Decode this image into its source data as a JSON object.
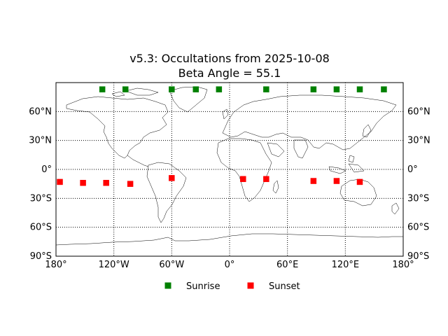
{
  "chart_data": {
    "type": "scatter",
    "title": "v5.3: Occultations from 2025-10-08",
    "subtitle": "Beta Angle = 55.1",
    "projection": "equirectangular",
    "xlim": [
      -180,
      180
    ],
    "ylim": [
      -90,
      90
    ],
    "x_ticks": [
      {
        "value": -180,
        "label": "180°"
      },
      {
        "value": -120,
        "label": "120°W"
      },
      {
        "value": -60,
        "label": "60°W"
      },
      {
        "value": 0,
        "label": "0°"
      },
      {
        "value": 60,
        "label": "60°E"
      },
      {
        "value": 120,
        "label": "120°E"
      },
      {
        "value": 180,
        "label": "180°"
      }
    ],
    "y_ticks": [
      {
        "value": 60,
        "label": "60°N"
      },
      {
        "value": 30,
        "label": "30°N"
      },
      {
        "value": 0,
        "label": "0°"
      },
      {
        "value": -30,
        "label": "30°S"
      },
      {
        "value": -60,
        "label": "60°S"
      },
      {
        "value": -90,
        "label": "90°S"
      }
    ],
    "grid": true,
    "legend_position": "bottom-center",
    "series": [
      {
        "name": "Sunrise",
        "color": "#008000",
        "marker": "square",
        "lon": [
          -132,
          -108,
          -60,
          -35,
          -11,
          38,
          87,
          111,
          135,
          160
        ],
        "lat": [
          83,
          83,
          83,
          83,
          83,
          83,
          83,
          83,
          83,
          83
        ]
      },
      {
        "name": "Sunset",
        "color": "#ff0000",
        "marker": "square",
        "lon": [
          -176,
          -152,
          -128,
          -103,
          -60,
          14,
          38,
          87,
          111,
          135
        ],
        "lat": [
          -13,
          -14,
          -14,
          -15,
          -9,
          -10,
          -10,
          -12,
          -12,
          -13
        ]
      }
    ]
  }
}
